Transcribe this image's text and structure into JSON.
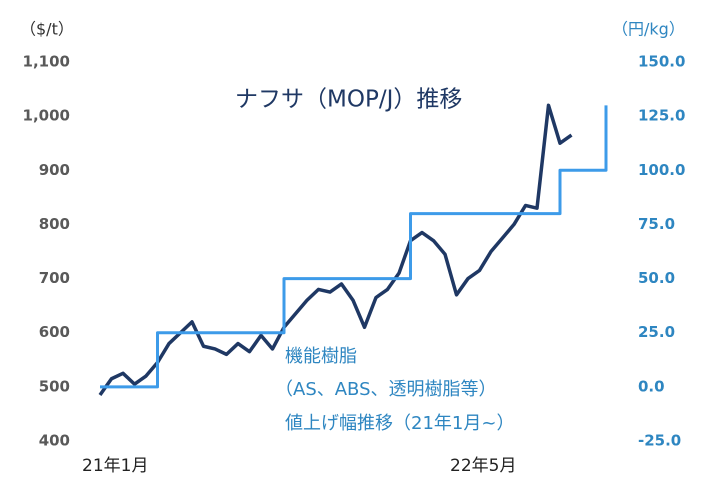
{
  "chart_data": {
    "type": "line",
    "annotations": [
      "ナフサ（MOP/J）推移",
      "機能樹脂",
      "（AS、ABS、透明樹脂等）",
      "値上げ幅推移（21年1月~）"
    ],
    "ylabel": "（$/t）",
    "y2label": "（円/kg）",
    "categories": [
      "21年1月",
      null,
      null,
      null,
      null,
      null,
      null,
      null,
      null,
      null,
      null,
      null,
      null,
      null,
      null,
      null,
      null,
      null,
      null,
      null,
      null,
      null,
      null,
      null,
      null,
      null,
      null,
      null,
      null,
      null,
      null,
      null,
      "22年5月",
      null,
      null,
      null,
      null,
      null,
      null,
      null,
      null,
      null,
      null,
      null,
      null
    ],
    "series": [
      {
        "name": "ナフサ（MOP/J）",
        "color": "#1f3864",
        "axis": "y",
        "values": [
          485,
          515,
          525,
          505,
          520,
          545,
          580,
          600,
          620,
          575,
          570,
          560,
          580,
          565,
          595,
          570,
          610,
          635,
          660,
          680,
          675,
          690,
          660,
          610,
          665,
          680,
          710,
          770,
          785,
          770,
          745,
          670,
          700,
          715,
          750,
          775,
          800,
          835,
          830,
          1020,
          950,
          965,
          null,
          null,
          null
        ]
      },
      {
        "name": "機能樹脂 値上げ幅",
        "color": "#3d9be9",
        "axis": "y2",
        "step": true,
        "values": [
          0,
          0,
          0,
          0,
          0,
          25,
          25,
          25,
          25,
          25,
          25,
          25,
          25,
          25,
          25,
          25,
          50,
          50,
          50,
          50,
          50,
          50,
          50,
          50,
          50,
          50,
          50,
          80,
          80,
          80,
          80,
          80,
          80,
          80,
          80,
          80,
          80,
          80,
          80,
          80,
          100,
          100,
          100,
          100,
          130
        ]
      }
    ],
    "ylim": [
      400,
      1100
    ],
    "yticks": [
      400,
      500,
      600,
      700,
      800,
      900,
      {
        "value": 1000,
        "label": "1,000"
      },
      {
        "value": 1100,
        "label": "1,100"
      }
    ],
    "y2lim": [
      -25,
      150
    ],
    "y2ticks": [
      {
        "value": -25,
        "label": "-25.0"
      },
      {
        "value": 0,
        "label": "0.0"
      },
      {
        "value": 25,
        "label": "25.0"
      },
      {
        "value": 50,
        "label": "50.0"
      },
      {
        "value": 75,
        "label": "75.0"
      },
      {
        "value": 100,
        "label": "100.0"
      },
      {
        "value": 125,
        "label": "125.0"
      },
      {
        "value": 150,
        "label": "150.0"
      }
    ],
    "grid": false
  }
}
